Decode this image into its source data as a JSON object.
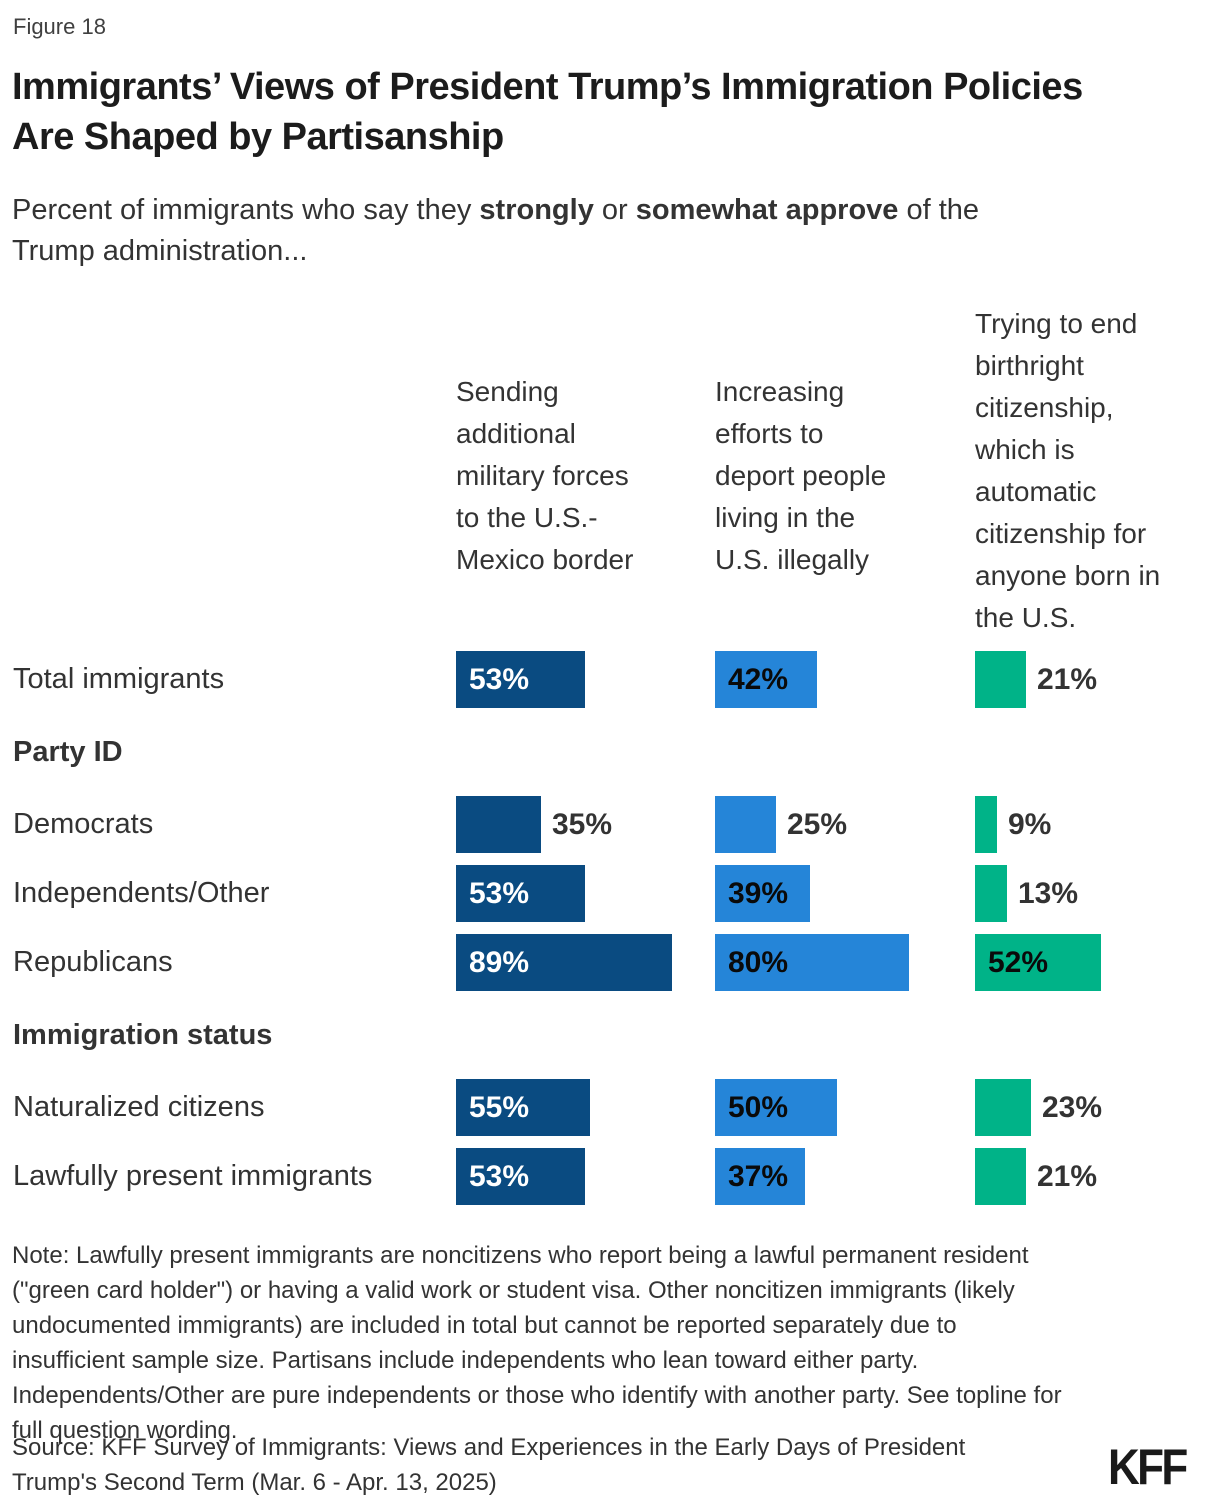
{
  "header": {
    "figure_label": "Figure 18",
    "title": "Immigrants’ Views of President Trump’s Immigration Policies\nAre Shaped by Partisanship",
    "subtitle_parts": {
      "p1": "Percent of immigrants who say they ",
      "bold1": "strongly",
      "p2": " or ",
      "bold2": "somewhat approve",
      "p3": " of the\nTrump administration..."
    }
  },
  "chart_data": {
    "type": "bar",
    "orientation": "horizontal",
    "unit_suffix": "%",
    "xlim": [
      0,
      100
    ],
    "grid": false,
    "legend": false,
    "value_labels": "every bar labeled; label sits inside the bar when value is large enough, otherwise just right of the bar",
    "value_label_inside_threshold": 37,
    "value_label_outside_color": "#333333",
    "categories": [
      "Total immigrants",
      "Democrats",
      "Independents/Other",
      "Republicans",
      "Naturalized citizens",
      "Lawfully present immigrants"
    ],
    "row_sections": [
      {
        "label": "Party ID",
        "applies_to": [
          "Democrats",
          "Independents/Other",
          "Republicans"
        ]
      },
      {
        "label": "Immigration status",
        "applies_to": [
          "Naturalized citizens",
          "Lawfully present immigrants"
        ]
      }
    ],
    "series": [
      {
        "name": "Sending additional military forces to the U.S.-Mexico border",
        "header": "Sending\nadditional\nmilitary forces\nto the U.S.-\nMexico border",
        "color": "#0A4B81",
        "value_label_inside_color": "#FFFFFF",
        "values": [
          53,
          35,
          53,
          89,
          55,
          53
        ]
      },
      {
        "name": "Increasing efforts to deport people living in the U.S. illegally",
        "header": "Increasing\nefforts to\ndeport people\nliving in the\nU.S. illegally",
        "color": "#2585D8",
        "value_label_inside_color": "#0A0A0A",
        "values": [
          42,
          25,
          39,
          80,
          50,
          37
        ]
      },
      {
        "name": "Trying to end birthright citizenship, which is automatic citizenship for anyone born in the U.S.",
        "header": "Trying to end\nbirthright\ncitizenship,\nwhich is\nautomatic\ncitizenship for\nanyone born in\nthe U.S.",
        "color": "#00B388",
        "value_label_inside_color": "#0A0A0A",
        "values": [
          21,
          9,
          13,
          52,
          23,
          21
        ]
      }
    ]
  },
  "footer": {
    "note": "Note: Lawfully present immigrants are noncitizens who report being a lawful permanent resident (\"green card holder\") or having a valid work or student visa. Other noncitizen immigrants (likely undocumented immigrants) are included in total but cannot be reported separately due to insufficient sample size. Partisans include independents who lean toward either party. Independents/Other are pure independents or those who identify with another party. See topline for full question wording.",
    "source": "Source: KFF Survey of Immigrants: Views and Experiences in the Early Days of President Trump's Second Term (Mar. 6 - Apr. 13, 2025)",
    "logo": "KFF"
  }
}
